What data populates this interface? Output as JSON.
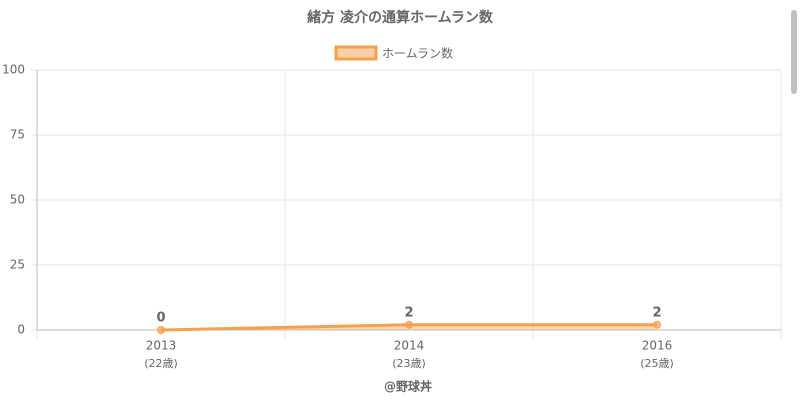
{
  "chart_data": {
    "type": "line",
    "title": "緒方 凌介の通算ホームラン数",
    "categories": [
      [
        "2013",
        "(22歳)"
      ],
      [
        "2014",
        "(23歳)"
      ],
      [
        "2016",
        "(25歳)"
      ]
    ],
    "series": [
      {
        "name": "ホームラン数",
        "color": "#f7a04b",
        "values": [
          0,
          2,
          2
        ]
      }
    ],
    "ylim": [
      0,
      100
    ],
    "yticks": [
      0,
      25,
      50,
      75,
      100
    ],
    "grid": true,
    "legend": "top",
    "source": "@野球丼"
  }
}
